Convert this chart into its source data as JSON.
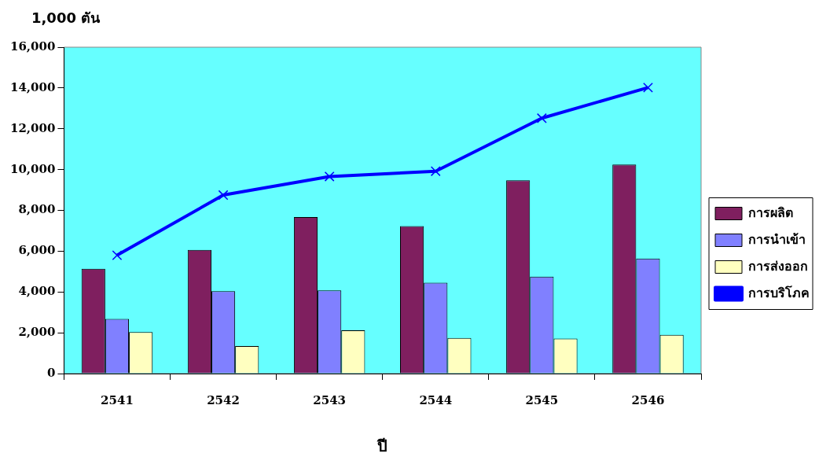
{
  "chart_data": {
    "type": "bar",
    "ylabel": "1,000 ตัน",
    "xlabel": "ปี",
    "categories": [
      "2541",
      "2542",
      "2543",
      "2544",
      "2545",
      "2546"
    ],
    "series": [
      {
        "name": "การผลิต",
        "color": "#7f1f5f",
        "values": [
          5140,
          6060,
          7670,
          7230,
          9470,
          10250
        ]
      },
      {
        "name": "การนำเข้า",
        "color": "#8080ff",
        "values": [
          2680,
          4040,
          4080,
          4450,
          4750,
          5640
        ]
      },
      {
        "name": "การส่งออก",
        "color": "#ffffc0",
        "values": [
          2030,
          1350,
          2120,
          1740,
          1720,
          1900
        ]
      },
      {
        "name": "การบริโภค",
        "type": "line",
        "color": "#0000ff",
        "marker": "cross",
        "values": [
          5800,
          8750,
          9660,
          9920,
          12520,
          14020
        ]
      }
    ],
    "ylim": [
      0,
      16000
    ],
    "yticks": [
      0,
      {
        "value": 2000,
        "label": "2,000"
      },
      {
        "value": 4000,
        "label": "4,000"
      },
      {
        "value": 6000,
        "label": "6,000"
      },
      {
        "value": 8000,
        "label": "8,000"
      },
      {
        "value": 10000,
        "label": "10,000"
      },
      {
        "value": 12000,
        "label": "12,000"
      },
      {
        "value": 14000,
        "label": "14,000"
      },
      {
        "value": 16000,
        "label": "16,000"
      }
    ],
    "grid": false,
    "legend": "right"
  }
}
